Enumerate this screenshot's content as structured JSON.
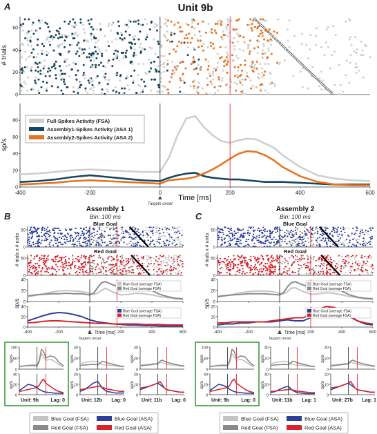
{
  "panels": {
    "A": "A",
    "B": "B",
    "C": "C"
  },
  "top": {
    "title": "Unit 9b",
    "raster_ylabel": "# trials",
    "raster_yticks": [
      0,
      20,
      40,
      60
    ],
    "rate_ylabel": "sp/s",
    "xlabel": "Time [ms]",
    "marker_label": "Targets onset",
    "legend": [
      "Full-Spikes Activity (FSA)",
      "Assembly1-Spikes Activity (ASA 1)",
      "Assembly2-Spikes Activity (ASA 2)"
    ]
  },
  "assembly1": {
    "title": "Assembly 1",
    "bin": "Bin: 100 ms",
    "blue_label": "Blue Goal",
    "red_label": "Red Goal",
    "raster_ylabel": "# trials x # units",
    "rate_ylabel": "sp/s",
    "xlabel": "Time [ms]",
    "marker_label": "Targets onset",
    "legend_fsa": [
      "Blue Goal (average FSA)",
      "Red Goal (average FSA)"
    ],
    "legend_asa": [
      "Blue Goal (average FSA)",
      "Red Goal (average FSA)"
    ],
    "small": [
      {
        "unit": "Unit: 9b",
        "lag": "Lag: 0"
      },
      {
        "unit": "Unit: 12b",
        "lag": "Lag: 0"
      },
      {
        "unit": "Unit: 11b",
        "lag": "Lag: 0"
      }
    ]
  },
  "assembly2": {
    "title": "Assembly 2",
    "bin": "Bin: 100 ms",
    "blue_label": "Blue Goal",
    "red_label": "Red Goal",
    "raster_ylabel": "# trials x # units",
    "rate_ylabel": "sp/s",
    "xlabel": "Time [ms]",
    "marker_label": "Targets onset",
    "legend_fsa": [
      "Blue Goal (average FSA)",
      "Red Goal (average FSA)"
    ],
    "legend_asa": [
      "Blue Goal (average FSA)",
      "Red Goal (average FSA)"
    ],
    "small": [
      {
        "unit": "Unit: 9b",
        "lag": "Lag: 0"
      },
      {
        "unit": "Unit: 11b",
        "lag": "Lag: 1"
      },
      {
        "unit": "Unit: 27b",
        "lag": "Lag: 1"
      }
    ]
  },
  "bottom_legend": [
    "Blue Goal (FSA)",
    "Red Goal (FSA)",
    "Blue Goal (ASA)",
    "Red Goal (ASA)"
  ],
  "colors": {
    "fsa": "#cfcfcf",
    "asa1": "#17475e",
    "asa2": "#e8731f",
    "blue": "#2e3f9a",
    "red": "#d9232b",
    "blue_fsa": "#c4c4c4",
    "red_fsa": "#8a8a8a",
    "onset": "#333333",
    "marker": "#e8232b",
    "green_box": "#3c9a3c"
  },
  "chart_data": [
    {
      "type": "line",
      "title": "Unit 9b",
      "xlabel": "Time [ms]",
      "ylabel": "sp/s",
      "xlim": [
        -400,
        600
      ],
      "ylim": [
        0,
        100
      ],
      "xticks": [
        -400,
        -200,
        0,
        200,
        400,
        600
      ],
      "yticks": [
        0,
        20,
        40,
        60,
        80
      ],
      "vlines": [
        0,
        200
      ],
      "x": [
        -400,
        -350,
        -300,
        -250,
        -200,
        -150,
        -100,
        -50,
        0,
        25,
        50,
        75,
        100,
        125,
        150,
        175,
        200,
        225,
        250,
        275,
        300,
        325,
        350,
        400,
        450,
        500,
        550,
        600
      ],
      "series": [
        {
          "name": "Full-Spikes Activity (FSA)",
          "values": [
            15,
            16,
            18,
            20,
            21,
            20,
            19,
            18,
            18,
            35,
            62,
            82,
            85,
            72,
            62,
            55,
            53,
            56,
            58,
            57,
            52,
            47,
            38,
            24,
            14,
            10,
            8,
            7
          ]
        },
        {
          "name": "Assembly1-Spikes Activity (ASA 1)",
          "values": [
            6,
            7,
            9,
            12,
            14,
            12,
            10,
            8,
            7,
            11,
            14,
            16,
            17,
            13,
            11,
            10,
            9,
            9,
            8,
            7,
            6,
            6,
            6,
            5,
            4,
            3,
            3,
            3
          ]
        },
        {
          "name": "Assembly2-Spikes Activity (ASA 2)",
          "values": [
            3,
            4,
            5,
            7,
            8,
            7,
            6,
            5,
            4,
            8,
            9,
            10,
            12,
            16,
            21,
            27,
            34,
            40,
            43,
            42,
            38,
            32,
            24,
            13,
            6,
            3,
            2,
            2
          ]
        }
      ]
    },
    {
      "type": "line",
      "title": "Assembly 1",
      "xlabel": "Time [ms]",
      "ylabel": "sp/s",
      "xlim": [
        -400,
        600
      ],
      "xticks": [
        -400,
        -200,
        0,
        200,
        400,
        600
      ],
      "vlines": [
        0,
        175
      ],
      "panels": [
        {
          "ylim": [
            0,
            40
          ],
          "yticks": [
            0,
            20,
            40
          ],
          "x": [
            -400,
            -350,
            -300,
            -250,
            -200,
            -150,
            -100,
            -50,
            0,
            25,
            50,
            75,
            100,
            150,
            200,
            250,
            300,
            350,
            400,
            450,
            500,
            550,
            600
          ],
          "series": [
            {
              "name": "Blue Goal (average FSA)",
              "values": [
                9,
                11,
                14,
                17,
                19,
                20,
                19,
                18,
                15,
                13,
                15,
                20,
                24,
                17,
                12,
                13,
                15,
                14,
                12,
                9,
                7,
                5,
                4
              ]
            },
            {
              "name": "Red Goal (average FSA)",
              "values": [
                10,
                12,
                13,
                14,
                14,
                15,
                14,
                14,
                12,
                15,
                25,
                34,
                36,
                30,
                26,
                30,
                33,
                28,
                20,
                13,
                9,
                6,
                5
              ]
            }
          ]
        },
        {
          "ylim": [
            0,
            40
          ],
          "yticks": [
            0,
            20,
            40
          ],
          "x": [
            -400,
            -350,
            -300,
            -250,
            -200,
            -150,
            -100,
            -50,
            0,
            50,
            100,
            150,
            200,
            250,
            300,
            350,
            400,
            450,
            500,
            550,
            600
          ],
          "series": [
            {
              "name": "Blue Goal (average FSA)",
              "values": [
                12,
                17,
                22,
                26,
                28,
                27,
                24,
                20,
                14,
                10,
                8,
                6,
                5,
                4,
                4,
                3,
                3,
                2,
                2,
                2,
                2
              ]
            },
            {
              "name": "Red Goal (average FSA)",
              "values": [
                8,
                9,
                11,
                12,
                12,
                11,
                10,
                9,
                8,
                7,
                7,
                6,
                6,
                6,
                6,
                5,
                5,
                5,
                4,
                4,
                4
              ]
            }
          ]
        }
      ]
    },
    {
      "type": "line",
      "title": "Assembly 2",
      "xlabel": "Time [ms]",
      "ylabel": "sp/s",
      "xlim": [
        -400,
        600
      ],
      "xticks": [
        -400,
        -200,
        0,
        200,
        400,
        600
      ],
      "vlines": [
        0,
        200
      ],
      "panels": [
        {
          "ylim": [
            0,
            40
          ],
          "yticks": [
            0,
            20,
            40
          ],
          "x": [
            -400,
            -350,
            -300,
            -250,
            -200,
            -150,
            -100,
            -50,
            0,
            25,
            50,
            75,
            100,
            150,
            200,
            250,
            300,
            350,
            400,
            450,
            500,
            550,
            600
          ],
          "series": [
            {
              "name": "Blue Goal (average FSA)",
              "values": [
                8,
                10,
                13,
                16,
                18,
                19,
                19,
                18,
                15,
                14,
                18,
                24,
                25,
                18,
                13,
                14,
                16,
                15,
                12,
                9,
                7,
                5,
                4
              ]
            },
            {
              "name": "Red Goal (average FSA)",
              "values": [
                9,
                11,
                12,
                13,
                14,
                14,
                14,
                13,
                12,
                16,
                27,
                34,
                36,
                30,
                26,
                30,
                32,
                27,
                19,
                12,
                8,
                6,
                5
              ]
            }
          ]
        },
        {
          "ylim": [
            0,
            20
          ],
          "yticks": [
            0,
            10,
            20
          ],
          "x": [
            -400,
            -350,
            -300,
            -250,
            -200,
            -150,
            -100,
            -50,
            0,
            50,
            100,
            150,
            200,
            250,
            300,
            350,
            400,
            450,
            500,
            550,
            600
          ],
          "series": [
            {
              "name": "Blue Goal (average FSA)",
              "values": [
                2,
                3,
                3,
                4,
                4,
                5,
                5,
                5,
                6,
                7,
                6,
                6,
                9,
                14,
                18,
                19,
                16,
                11,
                6,
                3,
                2
              ]
            },
            {
              "name": "Red Goal (average FSA)",
              "values": [
                4,
                4,
                5,
                5,
                5,
                5,
                5,
                6,
                7,
                8,
                9,
                9,
                12,
                17,
                20,
                19,
                15,
                10,
                6,
                4,
                3
              ]
            }
          ]
        }
      ]
    },
    {
      "type": "line",
      "title": "",
      "note": "small per-unit insets (Assembly 1 and Assembly 2)",
      "series": [
        {
          "name": "Blue Goal (FSA)",
          "values": []
        },
        {
          "name": "Red Goal (FSA)",
          "values": []
        },
        {
          "name": "Blue Goal (ASA)",
          "values": []
        },
        {
          "name": "Red Goal (ASA)",
          "values": []
        }
      ],
      "insets": [
        {
          "unit": "Unit: 9b",
          "lag": "Lag: 0",
          "fsa_ylim": [
            0,
            100
          ],
          "fsa_yticks": [
            0,
            50,
            100
          ],
          "asa_ylim": [
            0,
            40
          ],
          "asa_yticks": [
            0,
            20,
            40
          ]
        },
        {
          "unit": "Unit: 12b",
          "lag": "Lag: 0",
          "fsa_ylim": [
            0,
            40
          ],
          "fsa_yticks": [
            0,
            20,
            40
          ],
          "asa_ylim": [
            0,
            20
          ],
          "asa_yticks": [
            0,
            10,
            20
          ]
        },
        {
          "unit": "Unit: 11b",
          "lag": "Lag: 0",
          "fsa_ylim": [
            0,
            40
          ],
          "fsa_yticks": [
            0,
            20,
            40
          ],
          "asa_ylim": [
            0,
            20
          ],
          "asa_yticks": [
            0,
            10,
            20
          ]
        },
        {
          "unit": "Unit: 9b",
          "lag": "Lag: 0",
          "fsa_ylim": [
            0,
            100
          ],
          "fsa_yticks": [
            0,
            50,
            100
          ],
          "asa_ylim": [
            0,
            40
          ],
          "asa_yticks": [
            0,
            20,
            40
          ]
        },
        {
          "unit": "Unit: 11b",
          "lag": "Lag: 1",
          "fsa_ylim": [
            0,
            40
          ],
          "fsa_yticks": [
            0,
            20,
            40
          ],
          "asa_ylim": [
            0,
            40
          ],
          "asa_yticks": [
            0,
            20,
            40
          ]
        },
        {
          "unit": "Unit: 27b",
          "lag": "Lag: 1",
          "fsa_ylim": [
            0,
            40
          ],
          "fsa_yticks": [
            0,
            20,
            40
          ],
          "asa_ylim": [
            0,
            20
          ],
          "asa_yticks": [
            0,
            10,
            20
          ]
        }
      ]
    }
  ]
}
